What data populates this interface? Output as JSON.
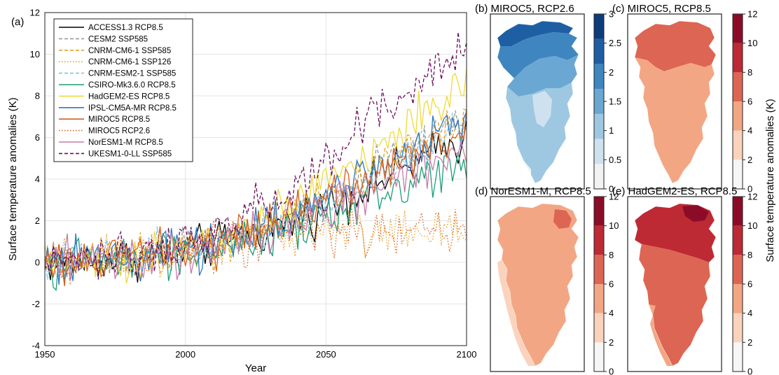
{
  "figure": {
    "panel_a_label": "(a)",
    "colorbar_label": "Surface temperature anomalies (K)"
  },
  "chart_data": [
    {
      "type": "line",
      "panel": "(a)",
      "xlabel": "Year",
      "ylabel": "Surface temperature anomalies (K)",
      "xlim": [
        1950,
        2100
      ],
      "ylim": [
        -4,
        12
      ],
      "xticks": [
        "1950",
        "2000",
        "2050",
        "2100"
      ],
      "yticks": [
        "-4",
        "-2",
        "0",
        "2",
        "4",
        "6",
        "8",
        "10",
        "12"
      ],
      "grid": true,
      "legend_position": "top-left",
      "series": [
        {
          "name": "ACCESS1.3 RCP8.5",
          "color": "#000000",
          "style": "solid",
          "years": [
            1950,
            2100
          ],
          "trend": [
            0.0,
            0.2,
            0.8,
            2.0,
            4.0,
            6.0
          ]
        },
        {
          "name": "CESM2 SSP585",
          "color": "#9a9a9a",
          "style": "dashed",
          "years": [
            1950,
            2100
          ],
          "trend": [
            0.0,
            0.2,
            0.8,
            2.2,
            4.5,
            7.0
          ]
        },
        {
          "name": "CNRM-CM6-1 SSP585",
          "color": "#e5a11c",
          "style": "dashed",
          "years": [
            1950,
            2100
          ],
          "trend": [
            0.0,
            0.2,
            0.8,
            2.1,
            4.3,
            7.2
          ]
        },
        {
          "name": "CNRM-CM6-1 SSP126",
          "color": "#e5a11c",
          "style": "dotted",
          "years": [
            1950,
            2100
          ],
          "trend": [
            0.0,
            0.2,
            0.8,
            1.6,
            1.5,
            1.3
          ]
        },
        {
          "name": "CNRM-ESM2-1 SSP585",
          "color": "#7fc4e6",
          "style": "dashed",
          "years": [
            1950,
            2100
          ],
          "trend": [
            0.0,
            0.2,
            0.8,
            2.1,
            4.3,
            7.0
          ]
        },
        {
          "name": "CSIRO-Mk3.6.0 RCP8.5",
          "color": "#1c9e77",
          "style": "solid",
          "years": [
            1950,
            2100
          ],
          "trend": [
            0.0,
            0.1,
            0.6,
            1.6,
            3.2,
            5.0
          ]
        },
        {
          "name": "HadGEM2-ES RCP8.5",
          "color": "#eeda3a",
          "style": "solid",
          "years": [
            1950,
            2100
          ],
          "trend": [
            0.0,
            0.2,
            1.0,
            2.8,
            5.8,
            8.5
          ]
        },
        {
          "name": "IPSL-CM5A-MR RCP8.5",
          "color": "#2e78c0",
          "style": "solid",
          "years": [
            1950,
            2100
          ],
          "trend": [
            0.0,
            0.2,
            0.9,
            2.4,
            4.7,
            6.8
          ]
        },
        {
          "name": "MIROC5 RCP8.5",
          "color": "#d95f1a",
          "style": "solid",
          "years": [
            1950,
            2100
          ],
          "trend": [
            0.0,
            0.2,
            0.9,
            2.3,
            4.4,
            6.2
          ]
        },
        {
          "name": "MIROC5 RCP2.6",
          "color": "#d95f1a",
          "style": "dotted",
          "years": [
            1950,
            2100
          ],
          "trend": [
            0.0,
            0.2,
            0.8,
            1.5,
            1.6,
            1.4
          ]
        },
        {
          "name": "NorESM1-M RCP8.5",
          "color": "#c77ca8",
          "style": "solid",
          "years": [
            1950,
            2100
          ],
          "trend": [
            0.0,
            0.1,
            0.7,
            1.8,
            3.6,
            5.4
          ]
        },
        {
          "name": "UKESM1-0-LL SSP585",
          "color": "#6b0f5a",
          "style": "dashed",
          "years": [
            1950,
            2100
          ],
          "trend": [
            0.0,
            0.3,
            1.3,
            3.6,
            7.2,
            10.5
          ]
        }
      ]
    },
    {
      "type": "heatmap",
      "panel": "(b)",
      "title": "(b) MIROC5, RCP2.6",
      "colorbar_ticks": [
        "0",
        "0.5",
        "1",
        "1.5",
        "2",
        "2.5",
        "3"
      ],
      "colorbar_colors": [
        "#f2f2f2",
        "#cfe1ef",
        "#9ec8e1",
        "#6aa7d2",
        "#3f86c0",
        "#1e5fa4",
        "#0d3c7a"
      ]
    },
    {
      "type": "heatmap",
      "panel": "(c)",
      "title": "(c) MIROC5, RCP8.5",
      "colorbar_ticks": [
        "0",
        "2",
        "4",
        "6",
        "8",
        "10",
        "12"
      ],
      "colorbar_colors": [
        "#f6f6f6",
        "#fbd3bd",
        "#f3a683",
        "#dd6553",
        "#bd2a34",
        "#8c0c28"
      ]
    },
    {
      "type": "heatmap",
      "panel": "(d)",
      "title": "(d) NorESM1-M, RCP8.5",
      "colorbar_ticks": [
        "0",
        "2",
        "4",
        "6",
        "8",
        "10",
        "12"
      ],
      "colorbar_colors": [
        "#f6f6f6",
        "#fbd3bd",
        "#f3a683",
        "#dd6553",
        "#bd2a34",
        "#8c0c28"
      ]
    },
    {
      "type": "heatmap",
      "panel": "(e)",
      "title": "(e) HadGEM2-ES, RCP8.5",
      "colorbar_ticks": [
        "0",
        "2",
        "4",
        "6",
        "8",
        "10",
        "12"
      ],
      "colorbar_colors": [
        "#f6f6f6",
        "#fbd3bd",
        "#f3a683",
        "#dd6553",
        "#bd2a34",
        "#8c0c28"
      ]
    }
  ]
}
